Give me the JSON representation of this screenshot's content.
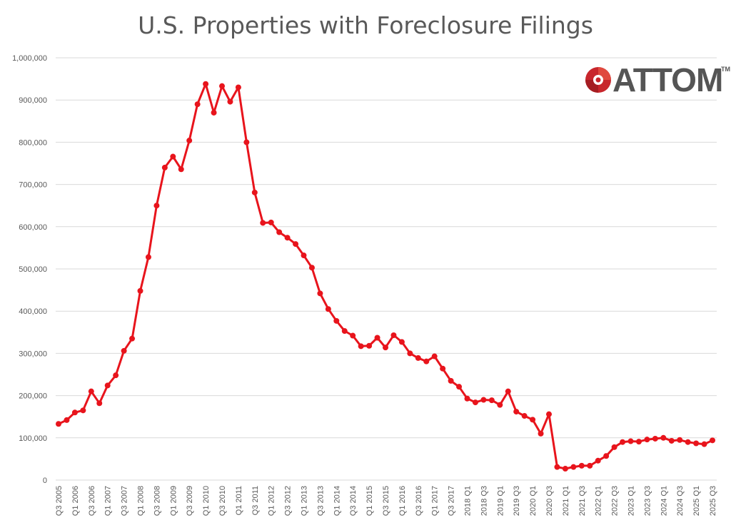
{
  "logo": {
    "text": "ATTOM",
    "trademark": "TM"
  },
  "colors": {
    "line": "#e8141c",
    "grid": "#d9d9d9",
    "text": "#595959",
    "brand_red": "#c8262c",
    "brand_gray": "#555555"
  },
  "chart_data": {
    "type": "line",
    "title": "U.S. Properties with Foreclosure Filings",
    "xlabel": "",
    "ylabel": "",
    "ylim": [
      0,
      1000000
    ],
    "yticks": [
      0,
      100000,
      200000,
      300000,
      400000,
      500000,
      600000,
      700000,
      800000,
      900000,
      1000000
    ],
    "ytick_labels": [
      "0",
      "100,000",
      "200,000",
      "300,000",
      "400,000",
      "500,000",
      "600,000",
      "700,000",
      "800,000",
      "900,000",
      "1,000,000"
    ],
    "grid": true,
    "legend": "none",
    "categories": [
      "Q3 2005",
      "Q4 2005",
      "Q1 2006",
      "Q2 2006",
      "Q3 2006",
      "Q4 2006",
      "Q1 2007",
      "Q2 2007",
      "Q3 2007",
      "Q4 2007",
      "Q1 2008",
      "Q2 2008",
      "Q3 2008",
      "Q4 2008",
      "Q1 2009",
      "Q2 2009",
      "Q3 2009",
      "Q4 2009",
      "Q1 2010",
      "Q2 2010",
      "Q3 2010",
      "Q4 2010",
      "Q1 2011",
      "Q2 2011",
      "Q3 2011",
      "Q4 2011",
      "Q1 2012",
      "Q2 2012",
      "Q3 2012",
      "Q4 2012",
      "Q1 2013",
      "Q2 2013",
      "Q3 2013",
      "Q4 2013",
      "Q1 2014",
      "Q2 2014",
      "Q3 2014",
      "Q4 2014",
      "Q1 2015",
      "Q2 2015",
      "Q3 2015",
      "Q4 2015",
      "Q1 2016",
      "Q2 2016",
      "Q3 2016",
      "Q4 2016",
      "Q1 2017",
      "Q2 2017",
      "Q3 2017",
      "Q4 2017",
      "2018 Q1",
      "2018 Q2",
      "2018 Q3",
      "2018 Q4",
      "2019 Q1",
      "2019 Q2",
      "2019 Q3",
      "2019 Q4",
      "2020 Q1",
      "2020 Q2",
      "2020 Q3",
      "2020 Q4",
      "2021 Q1",
      "2021 Q2",
      "2021 Q3",
      "2021 Q4",
      "2022 Q1",
      "2022 Q2",
      "2022 Q3",
      "2022 Q4",
      "2023 Q1",
      "2023 Q2",
      "2023 Q3",
      "2023 Q4",
      "2024 Q1",
      "2024 Q2",
      "2024 Q3",
      "2024 Q4",
      "2025 Q1",
      "2025 Q2",
      "2025 Q3"
    ],
    "tick_labels": [
      "Q3 2005",
      "",
      "Q1 2006",
      "",
      "Q3 2006",
      "",
      "Q1 2007",
      "",
      "Q3 2007",
      "",
      "Q1 2008",
      "",
      "Q3 2008",
      "",
      "Q1 2009",
      "",
      "Q3 2009",
      "",
      "Q1 2010",
      "",
      "Q3 2010",
      "",
      "Q1 2011",
      "",
      "Q3 2011",
      "",
      "Q1 2012",
      "",
      "Q3 2012",
      "",
      "Q1 2013",
      "",
      "Q3 2013",
      "",
      "Q1 2014",
      "",
      "Q3 2014",
      "",
      "Q1 2015",
      "",
      "Q3 2015",
      "",
      "Q1 2016",
      "",
      "Q3 2016",
      "",
      "Q1 2017",
      "",
      "Q3 2017",
      "",
      "2018 Q1",
      "",
      "2018 Q3",
      "",
      "2019 Q1",
      "",
      "2019 Q3",
      "",
      "2020 Q1",
      "",
      "2020 Q3",
      "",
      "2021 Q1",
      "",
      "2021 Q3",
      "",
      "2022 Q1",
      "",
      "2022 Q3",
      "",
      "2023 Q1",
      "",
      "2023 Q3",
      "",
      "2024 Q1",
      "",
      "2024 Q3",
      "",
      "2025 Q1",
      "",
      "2025 Q3"
    ],
    "series": [
      {
        "values": [
          133000,
          142000,
          160000,
          165000,
          210000,
          182000,
          224000,
          248000,
          306000,
          335000,
          448000,
          528000,
          650000,
          740000,
          766000,
          736000,
          804000,
          890000,
          938000,
          870000,
          933000,
          896000,
          930000,
          800000,
          681000,
          609000,
          610000,
          587000,
          574000,
          559000,
          532000,
          503000,
          442000,
          405000,
          377000,
          353000,
          342000,
          317000,
          318000,
          337000,
          314000,
          343000,
          327000,
          300000,
          289000,
          281000,
          293000,
          264000,
          235000,
          221000,
          193000,
          184000,
          190000,
          189000,
          178000,
          210000,
          162000,
          152000,
          143000,
          110000,
          156000,
          31000,
          27000,
          31000,
          34000,
          34000,
          46000,
          57000,
          78000,
          90000,
          92000,
          91000,
          96000,
          98000,
          100000,
          93000,
          95000,
          90000,
          87000,
          85000,
          94000
        ]
      }
    ]
  }
}
